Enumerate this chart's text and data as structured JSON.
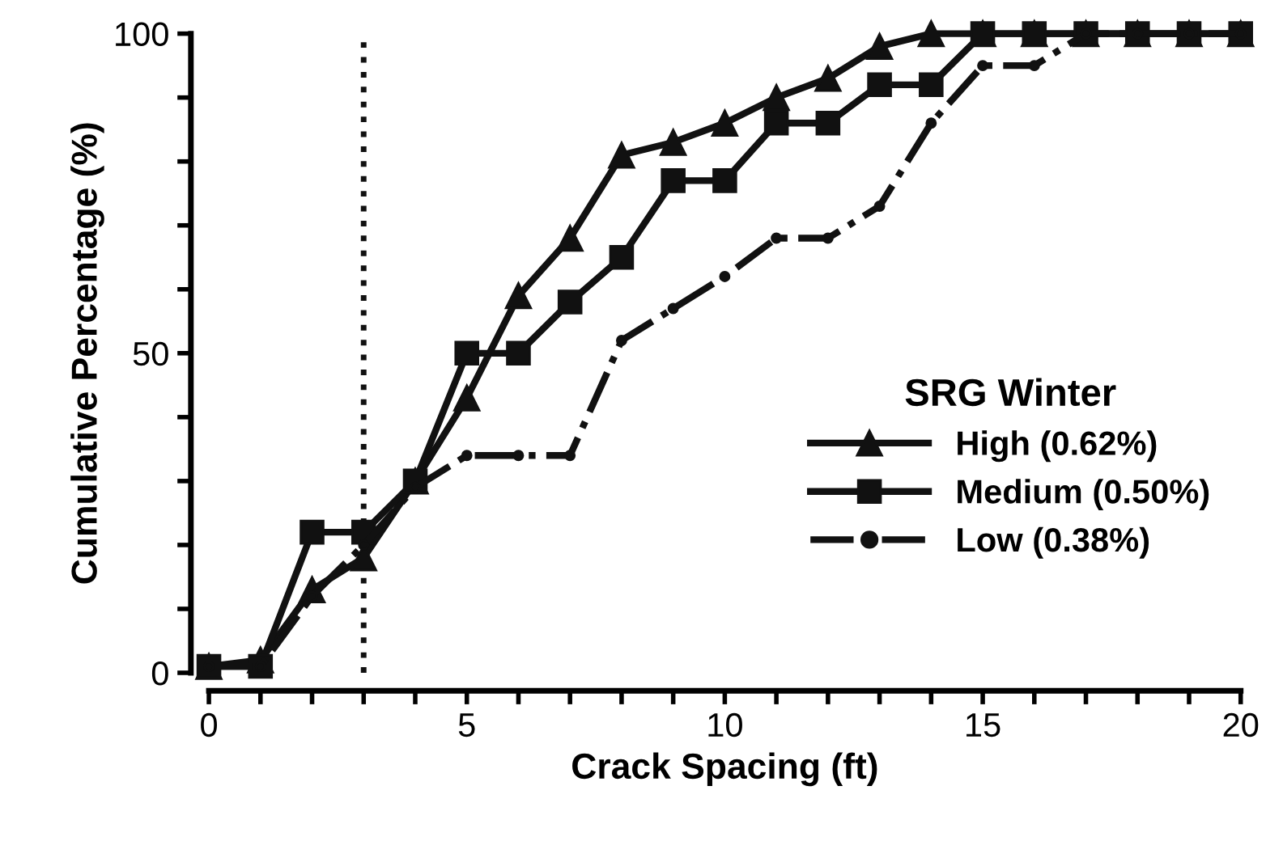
{
  "chart_data": {
    "type": "line",
    "xlabel": "Crack Spacing (ft)",
    "ylabel": "Cumulative Percentage (%)",
    "legend_title": "SRG Winter",
    "legend": "right",
    "grid": false,
    "x": [
      0,
      1,
      2,
      3,
      4,
      5,
      6,
      7,
      8,
      9,
      10,
      11,
      12,
      13,
      14,
      15,
      16,
      17,
      18,
      19,
      20
    ],
    "series": [
      {
        "name": "High (0.62%)",
        "color": "#111111",
        "marker": "triangle",
        "line_style": "solid",
        "values": [
          1,
          2,
          13,
          18,
          30,
          43,
          59,
          68,
          81,
          83,
          86,
          90,
          93,
          98,
          100,
          100,
          100,
          100,
          100,
          100,
          100
        ]
      },
      {
        "name": "Medium (0.50%)",
        "color": "#111111",
        "marker": "square",
        "line_style": "solid",
        "values": [
          1,
          1,
          22,
          22,
          30,
          50,
          50,
          58,
          65,
          77,
          77,
          86,
          86,
          92,
          92,
          100,
          100,
          100,
          100,
          100,
          100
        ]
      },
      {
        "name": "Low (0.38%)",
        "color": "#111111",
        "marker": "circle",
        "line_style": "dashdot",
        "values": [
          1,
          1,
          12,
          20,
          29,
          34,
          34,
          34,
          52,
          57,
          62,
          68,
          68,
          73,
          86,
          95,
          95,
          100,
          100,
          100,
          100
        ]
      }
    ],
    "xlim": [
      0,
      20
    ],
    "ylim": [
      0,
      100
    ],
    "xticks": [
      0,
      {
        "value": 1,
        "label": null
      },
      {
        "value": 2,
        "label": null
      },
      {
        "value": 3,
        "label": null
      },
      {
        "value": 4,
        "label": null
      },
      5,
      {
        "value": 6,
        "label": null
      },
      {
        "value": 7,
        "label": null
      },
      {
        "value": 8,
        "label": null
      },
      {
        "value": 9,
        "label": null
      },
      10,
      {
        "value": 11,
        "label": null
      },
      {
        "value": 12,
        "label": null
      },
      {
        "value": 13,
        "label": null
      },
      {
        "value": 14,
        "label": null
      },
      15,
      {
        "value": 16,
        "label": null
      },
      {
        "value": 17,
        "label": null
      },
      {
        "value": 18,
        "label": null
      },
      {
        "value": 19,
        "label": null
      },
      20
    ],
    "yticks": [
      0,
      {
        "value": 10,
        "label": null
      },
      {
        "value": 20,
        "label": null
      },
      {
        "value": 30,
        "label": null
      },
      {
        "value": 40,
        "label": null
      },
      50,
      {
        "value": 60,
        "label": null
      },
      {
        "value": 70,
        "label": null
      },
      {
        "value": 80,
        "label": null
      },
      {
        "value": 90,
        "label": null
      },
      100
    ],
    "ref_lines": [
      {
        "axis": "x",
        "value": 3,
        "color": "#111111",
        "line_style": "dotted"
      }
    ]
  }
}
